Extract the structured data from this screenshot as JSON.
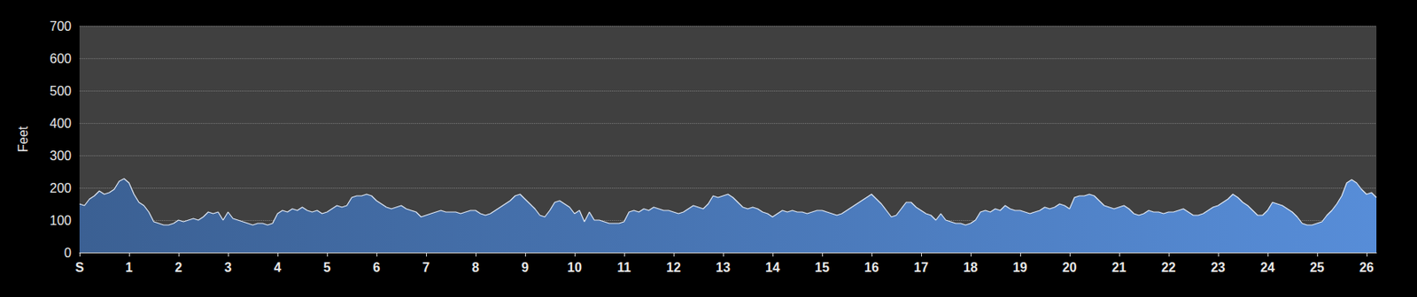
{
  "chart_data": {
    "type": "area",
    "y_label": "Feet",
    "color": "#4f80c4",
    "grid": true,
    "xlim": [
      0,
      26.2
    ],
    "xticks": [
      {
        "value": 0,
        "label": "S"
      },
      1,
      2,
      3,
      4,
      5,
      6,
      7,
      8,
      9,
      10,
      11,
      12,
      13,
      14,
      15,
      16,
      17,
      18,
      19,
      20,
      21,
      22,
      23,
      24,
      25,
      26
    ],
    "ylim": [
      0,
      700
    ],
    "yticks": [
      0,
      100,
      200,
      300,
      400,
      500,
      600,
      700
    ],
    "x": [
      0,
      0.1,
      0.2,
      0.3,
      0.4,
      0.5,
      0.6,
      0.7,
      0.8,
      0.9,
      1,
      1.1,
      1.2,
      1.3,
      1.4,
      1.5,
      1.6,
      1.7,
      1.8,
      1.9,
      2,
      2.1,
      2.2,
      2.3,
      2.4,
      2.5,
      2.6,
      2.7,
      2.8,
      2.9,
      3,
      3.1,
      3.2,
      3.3,
      3.4,
      3.5,
      3.6,
      3.7,
      3.8,
      3.9,
      4,
      4.1,
      4.2,
      4.3,
      4.4,
      4.5,
      4.6,
      4.7,
      4.8,
      4.9,
      5,
      5.1,
      5.2,
      5.3,
      5.4,
      5.5,
      5.6,
      5.7,
      5.8,
      5.9,
      6,
      6.1,
      6.2,
      6.3,
      6.4,
      6.5,
      6.6,
      6.7,
      6.8,
      6.9,
      7,
      7.1,
      7.2,
      7.3,
      7.4,
      7.5,
      7.6,
      7.7,
      7.8,
      7.9,
      8,
      8.1,
      8.2,
      8.3,
      8.4,
      8.5,
      8.6,
      8.7,
      8.8,
      8.9,
      9,
      9.1,
      9.2,
      9.3,
      9.4,
      9.5,
      9.6,
      9.7,
      9.8,
      9.9,
      10,
      10.1,
      10.2,
      10.3,
      10.4,
      10.5,
      10.6,
      10.7,
      10.8,
      10.9,
      11,
      11.1,
      11.2,
      11.3,
      11.4,
      11.5,
      11.6,
      11.7,
      11.8,
      11.9,
      12,
      12.1,
      12.2,
      12.3,
      12.4,
      12.5,
      12.6,
      12.7,
      12.8,
      12.9,
      13,
      13.1,
      13.2,
      13.3,
      13.4,
      13.5,
      13.6,
      13.7,
      13.8,
      13.9,
      14,
      14.1,
      14.2,
      14.3,
      14.4,
      14.5,
      14.6,
      14.7,
      14.8,
      14.9,
      15,
      15.1,
      15.2,
      15.3,
      15.4,
      15.5,
      15.6,
      15.7,
      15.8,
      15.9,
      16,
      16.1,
      16.2,
      16.3,
      16.4,
      16.5,
      16.6,
      16.7,
      16.8,
      16.9,
      17,
      17.1,
      17.2,
      17.3,
      17.4,
      17.5,
      17.6,
      17.7,
      17.8,
      17.9,
      18,
      18.1,
      18.2,
      18.3,
      18.4,
      18.5,
      18.6,
      18.7,
      18.8,
      18.9,
      19,
      19.1,
      19.2,
      19.3,
      19.4,
      19.5,
      19.6,
      19.7,
      19.8,
      19.9,
      20,
      20.1,
      20.2,
      20.3,
      20.4,
      20.5,
      20.6,
      20.7,
      20.8,
      20.9,
      21,
      21.1,
      21.2,
      21.3,
      21.4,
      21.5,
      21.6,
      21.7,
      21.8,
      21.9,
      22,
      22.1,
      22.2,
      22.3,
      22.4,
      22.5,
      22.6,
      22.7,
      22.8,
      22.9,
      23,
      23.1,
      23.2,
      23.3,
      23.4,
      23.5,
      23.6,
      23.7,
      23.8,
      23.9,
      24,
      24.1,
      24.2,
      24.3,
      24.4,
      24.5,
      24.6,
      24.7,
      24.8,
      24.9,
      25,
      25.1,
      25.2,
      25.3,
      25.4,
      25.5,
      25.6,
      25.7,
      25.8,
      25.9,
      26,
      26.1,
      26.2
    ],
    "values": [
      150,
      145,
      165,
      175,
      190,
      180,
      185,
      195,
      220,
      228,
      215,
      180,
      155,
      145,
      125,
      95,
      90,
      85,
      85,
      90,
      100,
      95,
      100,
      105,
      100,
      110,
      125,
      120,
      125,
      100,
      125,
      105,
      100,
      95,
      90,
      85,
      90,
      90,
      85,
      90,
      120,
      130,
      125,
      135,
      130,
      140,
      130,
      125,
      130,
      120,
      125,
      135,
      145,
      140,
      145,
      170,
      175,
      175,
      180,
      175,
      160,
      150,
      140,
      135,
      140,
      145,
      135,
      130,
      125,
      110,
      115,
      120,
      125,
      130,
      125,
      125,
      125,
      120,
      125,
      130,
      130,
      120,
      115,
      120,
      130,
      140,
      150,
      160,
      175,
      180,
      165,
      150,
      135,
      115,
      110,
      130,
      155,
      160,
      150,
      140,
      120,
      130,
      95,
      125,
      100,
      100,
      95,
      90,
      90,
      90,
      95,
      125,
      130,
      125,
      135,
      130,
      140,
      135,
      130,
      130,
      125,
      120,
      125,
      135,
      145,
      140,
      135,
      150,
      175,
      170,
      175,
      180,
      170,
      155,
      140,
      135,
      140,
      135,
      125,
      120,
      110,
      120,
      130,
      125,
      130,
      125,
      125,
      120,
      125,
      130,
      130,
      125,
      120,
      115,
      120,
      130,
      140,
      150,
      160,
      170,
      180,
      165,
      150,
      130,
      110,
      115,
      135,
      155,
      155,
      140,
      130,
      120,
      115,
      100,
      120,
      100,
      95,
      90,
      90,
      85,
      90,
      100,
      125,
      130,
      125,
      135,
      130,
      145,
      135,
      130,
      130,
      125,
      120,
      125,
      130,
      140,
      135,
      140,
      150,
      145,
      135,
      170,
      175,
      175,
      180,
      175,
      160,
      145,
      140,
      135,
      140,
      145,
      135,
      120,
      115,
      120,
      130,
      125,
      125,
      120,
      125,
      125,
      130,
      135,
      125,
      115,
      115,
      120,
      130,
      140,
      145,
      155,
      165,
      180,
      170,
      155,
      145,
      130,
      115,
      115,
      130,
      155,
      150,
      145,
      135,
      125,
      110,
      90,
      85,
      85,
      90,
      95,
      115,
      130,
      150,
      175,
      215,
      225,
      215,
      195,
      180,
      185,
      170
    ]
  }
}
